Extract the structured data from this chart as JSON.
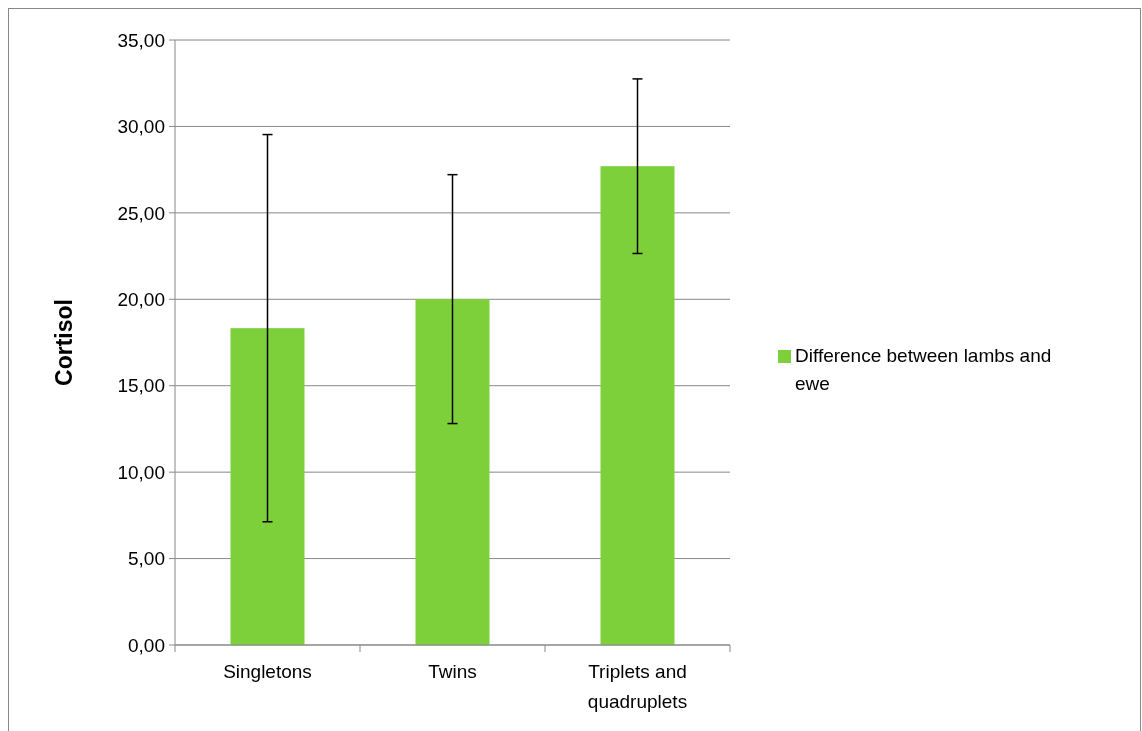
{
  "chart_data": {
    "type": "bar",
    "ylabel": "Cortisol",
    "categories": [
      "Singletons",
      "Twins",
      "Triplets and quadruplets"
    ],
    "series": [
      {
        "name": "Difference between lambs and ewe",
        "color": "#7ed03a",
        "values": [
          18.33,
          20.01,
          27.7
        ],
        "errors": [
          11.2,
          7.2,
          5.05
        ]
      }
    ],
    "ylim": [
      0,
      35
    ],
    "yticks": [
      {
        "value": 0,
        "label": "0,00"
      },
      {
        "value": 5,
        "label": "5,00"
      },
      {
        "value": 10,
        "label": "10,00"
      },
      {
        "value": 15,
        "label": "15,00"
      },
      {
        "value": 20,
        "label": "20,00"
      },
      {
        "value": 25,
        "label": "25,00"
      },
      {
        "value": 30,
        "label": "30,00"
      },
      {
        "value": 35,
        "label": "35,00"
      }
    ],
    "grid": "y",
    "legend": "right"
  }
}
